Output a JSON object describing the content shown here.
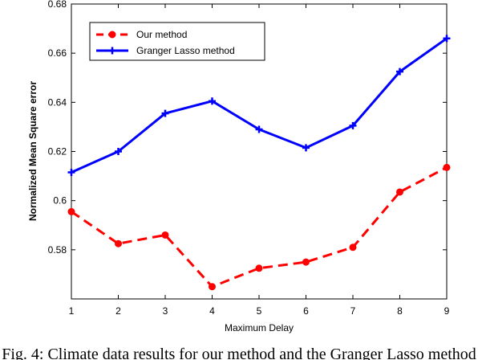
{
  "chart_data": {
    "type": "line",
    "title": "",
    "xlabel": "Maximum Delay",
    "ylabel": "Normalized Mean Square error",
    "x": [
      1,
      2,
      3,
      4,
      5,
      6,
      7,
      8,
      9
    ],
    "xlim": [
      1,
      9
    ],
    "ylim": [
      0.56,
      0.68
    ],
    "xticks": [
      "1",
      "2",
      "3",
      "4",
      "5",
      "6",
      "7",
      "8",
      "9"
    ],
    "yticks": [
      "0.58",
      "0.6",
      "0.62",
      "0.64",
      "0.66",
      "0.68"
    ],
    "grid": false,
    "legend_position": "top-left",
    "series": [
      {
        "name": "Our method",
        "color": "#ff0000",
        "line_style": "dashed",
        "marker": "dot",
        "values": [
          0.5955,
          0.5825,
          0.586,
          0.565,
          0.5725,
          0.575,
          0.581,
          0.6035,
          0.6135
        ]
      },
      {
        "name": "Granger Lasso method",
        "color": "#0000ff",
        "line_style": "solid",
        "marker": "plus",
        "values": [
          0.6115,
          0.62,
          0.6355,
          0.6405,
          0.629,
          0.6215,
          0.6305,
          0.6525,
          0.666
        ]
      }
    ]
  },
  "caption": "Fig. 4: Climate data results for our method and the Granger Lasso method"
}
